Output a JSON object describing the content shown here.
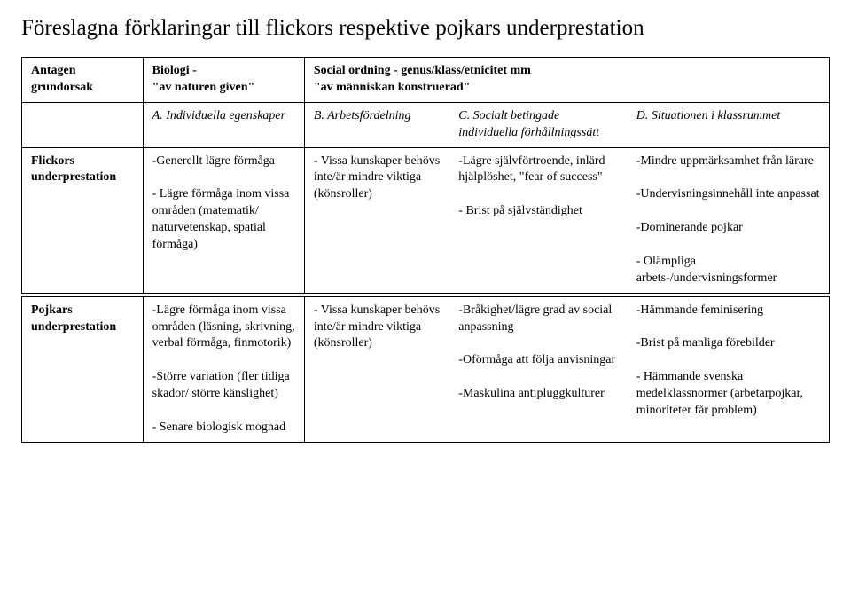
{
  "title": "Föreslagna förklaringar till flickors respektive pojkars underprestation",
  "rowhead": {
    "antagen": "Antagen grundorsak",
    "flickor": "Flickors underprestation",
    "pojkar": "Pojkars underprestation"
  },
  "topheader": {
    "bio": "Biologi -\n\"av naturen given\"",
    "soc": "Social ordning - genus/klass/etnicitet mm\n\"av människan konstruerad\""
  },
  "subheader": {
    "a": "A. Individuella egenskaper",
    "b": "B. Arbetsfördelning",
    "c": "C. Socialt betingade individuella förhållningssätt",
    "d": "D. Situationen i klassrummet"
  },
  "flickor": {
    "a": "-Generellt lägre förmåga\n\n- Lägre förmåga inom vissa områden (matematik/ naturvetenskap, spatial förmåga)",
    "b": "- Vissa kunskaper behövs inte/är mindre viktiga (könsroller)",
    "c": "-Lägre självförtroende, inlärd hjälplöshet, \"fear of success\"\n\n- Brist på självständighet",
    "d": "-Mindre uppmärksamhet från lärare\n\n-Undervisningsinnehåll inte anpassat\n\n-Dominerande pojkar\n\n- Olämpliga arbets-/undervisningsformer"
  },
  "pojkar": {
    "a": "-Lägre förmåga inom vissa områden (läsning, skrivning, verbal förmåga, finmotorik)\n\n-Större variation (fler tidiga skador/ större känslighet)\n\n- Senare biologisk mognad",
    "b": "- Vissa kunskaper behövs inte/är mindre viktiga (könsroller)",
    "c": "-Bråkighet/lägre grad av social anpassning\n\n-Oförmåga att följa anvisningar\n\n-Maskulina antipluggkulturer",
    "d": "-Hämmande feminisering\n\n-Brist på manliga förebilder\n\n- Hämmande svenska medelklassnormer (arbetarpojkar, minoriteter får problem)"
  },
  "style": {
    "title_fontsize": 25,
    "body_fontsize": 14,
    "font_family": "Times New Roman",
    "text_color": "#000000",
    "background_color": "#ffffff",
    "border_color": "#000000",
    "col_widths_pct": [
      15,
      20,
      18,
      22,
      25
    ]
  }
}
